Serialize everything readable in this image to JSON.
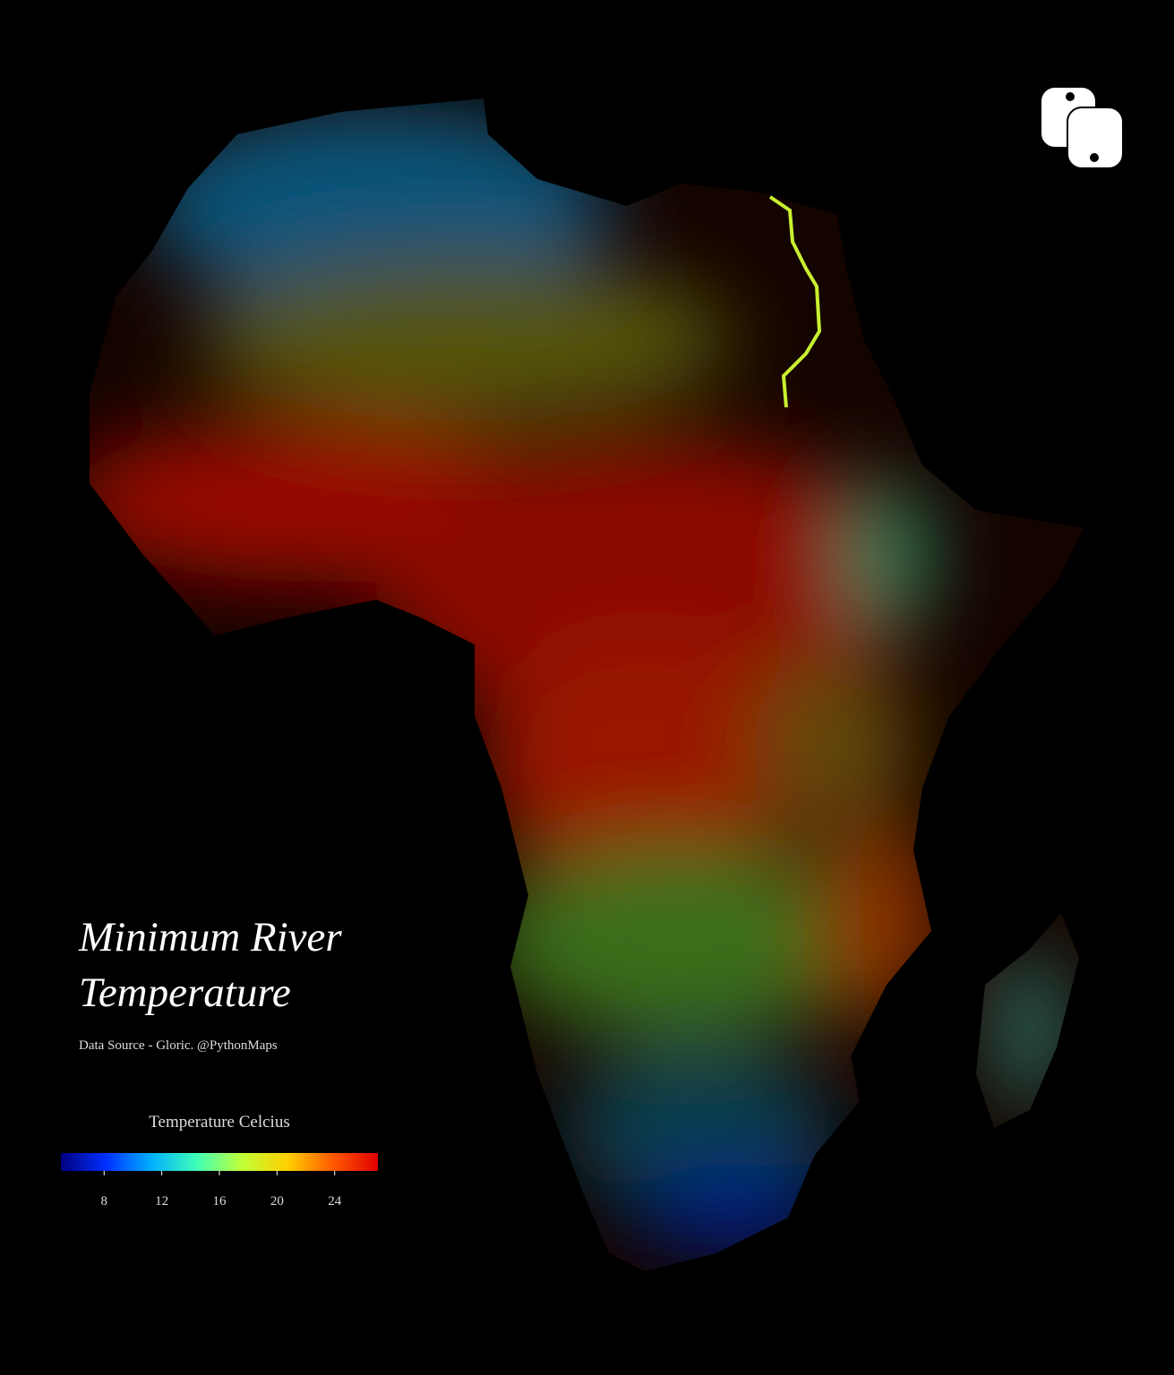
{
  "title": "Minimum River Temperature",
  "subtitle": "Data Source - Gloric. @PythonMaps",
  "legend": {
    "title": "Temperature Celcius",
    "range": [
      5,
      27
    ],
    "ticks": [
      8,
      12,
      16,
      20,
      24
    ],
    "colors": [
      "#00007f",
      "#0030ff",
      "#00b0ff",
      "#40ffb8",
      "#c0ff38",
      "#ffd000",
      "#ff5a00",
      "#e00000"
    ]
  }
}
